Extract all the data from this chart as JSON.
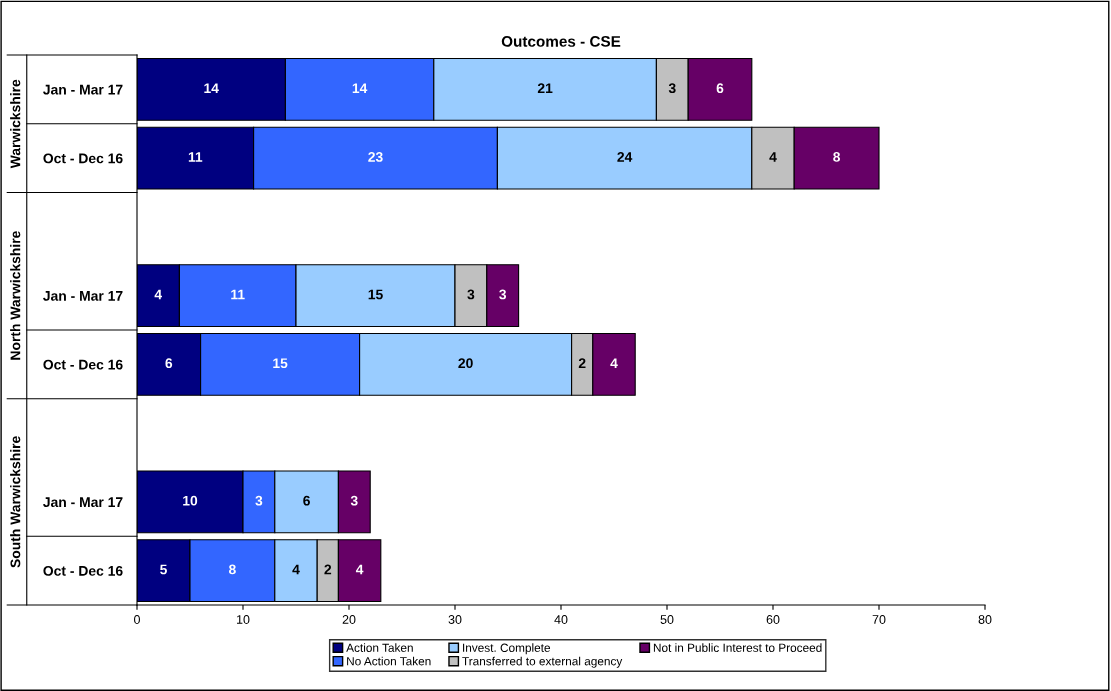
{
  "chart_data": {
    "type": "bar",
    "orientation": "horizontal",
    "stacked": true,
    "title": "Outcomes - CSE",
    "categories": [
      "Jan - Mar 17",
      "Oct - Dec 16",
      null,
      "Jan - Mar 17",
      "Oct - Dec 16",
      null,
      "Jan - Mar 17",
      "Oct - Dec 16"
    ],
    "series": [
      {
        "name": "Action Taken",
        "color": "#000080",
        "values": [
          14,
          11,
          null,
          4,
          6,
          null,
          10,
          5
        ]
      },
      {
        "name": "No Action Taken",
        "color": "#3366ff",
        "values": [
          14,
          23,
          null,
          11,
          15,
          null,
          3,
          8
        ]
      },
      {
        "name": "Invest. Complete",
        "color": "#99ccff",
        "values": [
          21,
          24,
          null,
          15,
          20,
          null,
          6,
          4
        ]
      },
      {
        "name": "Transferred to external agency",
        "color": "#c0c0c0",
        "values": [
          3,
          4,
          null,
          3,
          2,
          null,
          null,
          2
        ]
      },
      {
        "name": "Not in Public Interest to Proceed",
        "color": "#660066",
        "values": [
          6,
          8,
          null,
          3,
          4,
          null,
          3,
          4
        ]
      }
    ],
    "annotations": [
      "Warwickshire",
      "North Warwickshire",
      "South Warwickshire"
    ],
    "xlim": [
      0,
      80
    ],
    "xticks": [
      0,
      10,
      20,
      30,
      40,
      50,
      60,
      70,
      80
    ],
    "data_labels": true,
    "grid": false,
    "legend": "bottom"
  }
}
